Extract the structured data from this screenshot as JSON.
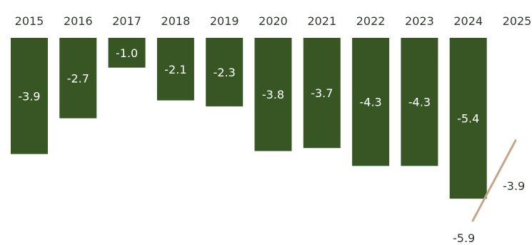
{
  "chart_data": {
    "type": "bar",
    "categories": [
      "2015",
      "2016",
      "2017",
      "2018",
      "2019",
      "2020",
      "2021",
      "2022",
      "2023",
      "2024",
      "2025"
    ],
    "values": [
      -3.9,
      -2.7,
      -1.0,
      -2.1,
      -2.3,
      -3.8,
      -3.7,
      -4.3,
      -4.3,
      -5.4,
      null
    ],
    "value_labels": [
      "-3.9",
      "-2.7",
      "-1.0",
      "-2.1",
      "-2.3",
      "-3.8",
      "-3.7",
      "-4.3",
      "-4.3",
      "-5.4",
      ""
    ],
    "projection_range": {
      "low": -5.9,
      "high": -3.9,
      "low_label": "-5.9",
      "high_label": "-3.9"
    },
    "ylim": [
      -6.5,
      0
    ],
    "grid": false,
    "legend": "none",
    "bar_color": "#375623",
    "label_color": "#ffffff",
    "year_label_color": "#2f3a2f",
    "projection_line_color": "#c4a68a"
  }
}
